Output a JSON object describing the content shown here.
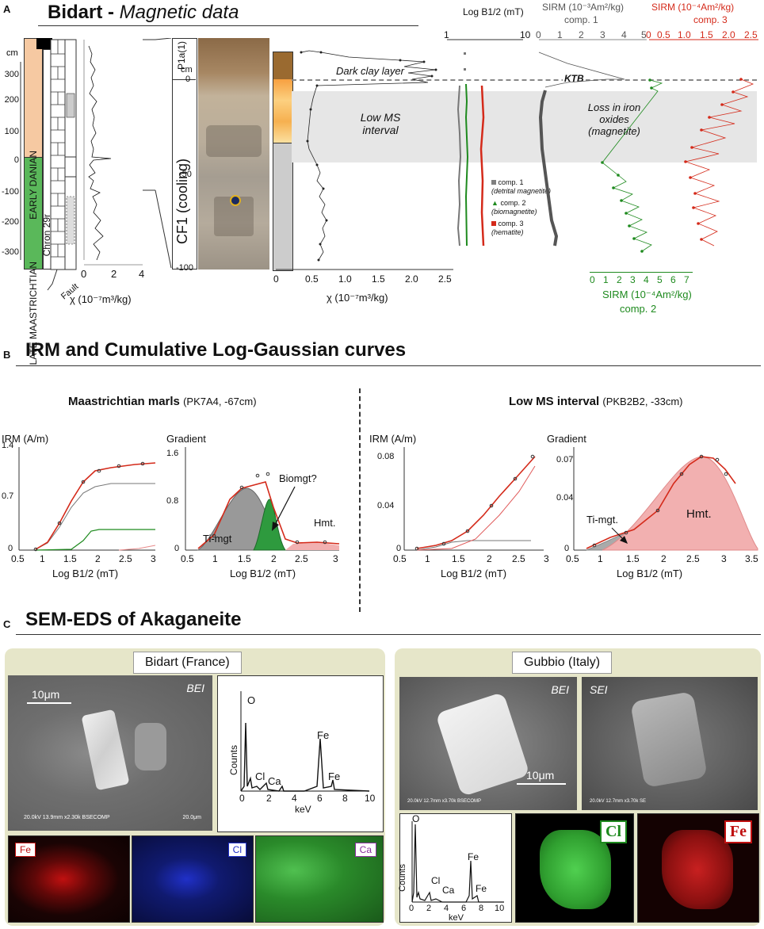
{
  "panelA": {
    "letter": "A",
    "title_main": "Bidart",
    "title_sep": " - ",
    "title_italic": "Magnetic data",
    "strat": {
      "early": "EARLY DANIAN",
      "late": "LATE MAASTRICHTIAN",
      "chron": "Chron 29r",
      "fault": "Fault",
      "cm": "cm",
      "depth_ticks": [
        "300",
        "200",
        "100",
        "0",
        "-100",
        "-200",
        "-300"
      ],
      "chi_ticks": [
        "0",
        "2",
        "4"
      ],
      "chi_label": "χ (10⁻⁷m³/kg)"
    },
    "zoom": {
      "cm": "cm",
      "p1a": "P1a(1)",
      "cf1": "CF1 (cooling)",
      "ticks": [
        "0",
        "-50",
        "-100"
      ]
    },
    "annotations": {
      "dark_clay": "Dark clay layer",
      "low_ms": "Low MS interval",
      "ktb": "KTB",
      "loss_iron": "Loss in iron oxides (magnetite)"
    },
    "chi_axis": {
      "ticks": [
        "0",
        "0.5",
        "1.0",
        "1.5",
        "2.0",
        "2.5"
      ],
      "label": "χ (10⁻⁷m³/kg)"
    },
    "logb_axis": {
      "label": "Log B1/2 (mT)",
      "ticks": [
        "1",
        "10"
      ]
    },
    "sirm1": {
      "title": "SIRM (10⁻³Am²/kg)",
      "sub": "comp. 1",
      "ticks": [
        "0",
        "1",
        "2",
        "3",
        "4",
        "5"
      ]
    },
    "sirm3": {
      "title": "SIRM (10⁻⁴Am²/kg)",
      "sub": "comp. 3",
      "ticks": [
        "0",
        "0.5",
        "1.0",
        "1.5",
        "2.0",
        "2.5"
      ]
    },
    "sirm2": {
      "title": "SIRM (10⁻⁴Am²/kg)",
      "sub": "comp. 2",
      "ticks": [
        "0",
        "1",
        "2",
        "3",
        "4",
        "5",
        "6",
        "7"
      ]
    },
    "legend": [
      {
        "name": "comp. 1",
        "desc": "(detrital magnetite)",
        "color": "#808080",
        "marker": "square"
      },
      {
        "name": "comp. 2",
        "desc": "(biomagnetite)",
        "color": "#1e8a1e",
        "marker": "triangle"
      },
      {
        "name": "comp. 3",
        "desc": "(hematite)",
        "color": "#d42a1a",
        "marker": "square"
      }
    ]
  },
  "panelB": {
    "letter": "B",
    "title": "IRM and Cumulative Log-Gaussian curves",
    "left_title": "Maastrichtian marls",
    "left_sub": "(PK7A4, -67cm)",
    "right_title": "Low MS interval",
    "right_sub": "(PKB2B2, -33cm)",
    "irm_label": "IRM (A/m)",
    "gradient_label": "Gradient",
    "xlabel": "Log B1/2 (mT)",
    "ticks_x": [
      "0.5",
      "1",
      "1.5",
      "2",
      "2.5",
      "3"
    ],
    "ticks_x_wide": [
      "0.5",
      "1",
      "1.5",
      "2",
      "2.5",
      "3",
      "3.5"
    ],
    "p1_y": [
      "0",
      "0.7",
      "1.4"
    ],
    "p2_y": [
      "0",
      "0.8",
      "1.6"
    ],
    "p3_y": [
      "0",
      "0.04",
      "0.08"
    ],
    "p4_y": [
      "0",
      "0.04",
      "0.07"
    ],
    "labels": {
      "timgt": "Ti-mgt",
      "biomgt": "Biomgt?",
      "hmt": "Hmt.",
      "timgt2": "Ti-mgt.",
      "hmt2": "Hmt."
    }
  },
  "panelC": {
    "letter": "C",
    "title": "SEM-EDS of Akaganeite",
    "bidart": "Bidart (France)",
    "gubbio": "Gubbio (Italy)",
    "bei": "BEI",
    "sei": "SEI",
    "scale_bidart": "10μm",
    "scale_gubbio": "10μm",
    "sem_caption_bidart": "20.0kV 13.9mm x2.30k BSECOMP",
    "sem_size_bidart": "20.0μm",
    "sem_caption_g1": "20.0kV 12.7mm x3.70k BSECOMP",
    "sem_caption_g2": "20.0kV 12.7mm x3.70k SE",
    "eds": {
      "counts": "Counts",
      "kev": "keV",
      "o": "O",
      "cl": "Cl",
      "ca": "Ca",
      "fe": "Fe",
      "ticks": [
        "0",
        "2",
        "4",
        "6",
        "8",
        "10"
      ]
    },
    "maps": {
      "fe": "Fe",
      "cl": "Cl",
      "ca": "Ca"
    }
  }
}
